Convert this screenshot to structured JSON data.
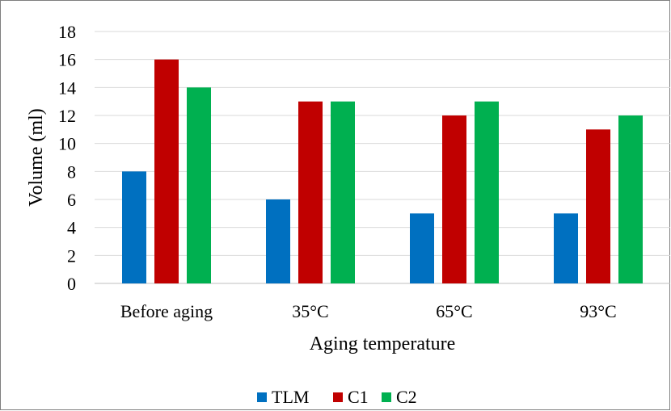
{
  "chart_data": {
    "type": "bar",
    "title": "",
    "xlabel": "Aging temperature",
    "ylabel": "Volume  (ml)",
    "categories": [
      "Before aging",
      "35°C",
      "65°C",
      "93°C"
    ],
    "series": [
      {
        "name": "TLM",
        "color": "#0070c0",
        "values": [
          8,
          6,
          5,
          5
        ]
      },
      {
        "name": "C1",
        "color": "#c00000",
        "values": [
          16,
          13,
          12,
          11
        ]
      },
      {
        "name": "C2",
        "color": "#00b050",
        "values": [
          14,
          13,
          13,
          12
        ]
      }
    ],
    "ylim": [
      0,
      18
    ],
    "yticks": [
      0,
      2,
      4,
      6,
      8,
      10,
      12,
      14,
      16,
      18
    ],
    "grid": true,
    "legend_position": "bottom"
  }
}
